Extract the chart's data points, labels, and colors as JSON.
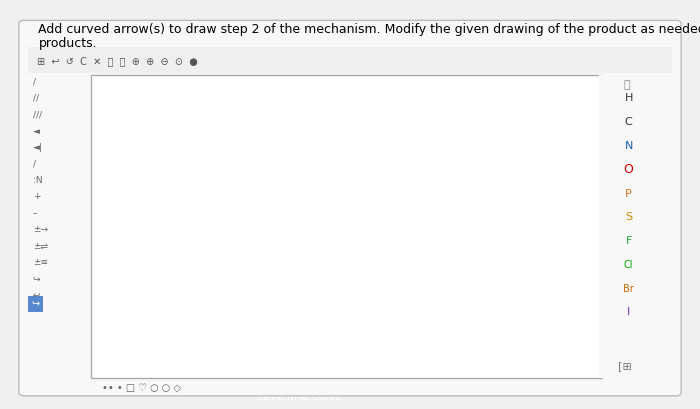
{
  "title_line1": "Add curved arrow(s) to draw step 2 of the mechanism. Modify the given drawing of the product as needed, and show both",
  "title_line2": "products.",
  "title_fontsize": 9,
  "bg_color": "#f0f0f0",
  "panel_bg": "#f5f5f5",
  "inner_bg": "#ffffff",
  "save_button_color": "#2196F3",
  "save_button_text": "Save and Close",
  "red_color": "#cc0000",
  "black": "#000000",
  "blue_dash": "#7799cc",
  "right_labels": [
    "H",
    "C",
    "N",
    "O",
    "P",
    "S",
    "F",
    "Cl",
    "Br",
    "I"
  ],
  "right_colors": [
    "#333333",
    "#333333",
    "#1a5fb4",
    "#cc0000",
    "#e07020",
    "#cc8800",
    "#22aa44",
    "#00aa00",
    "#cc6600",
    "#7733cc"
  ]
}
